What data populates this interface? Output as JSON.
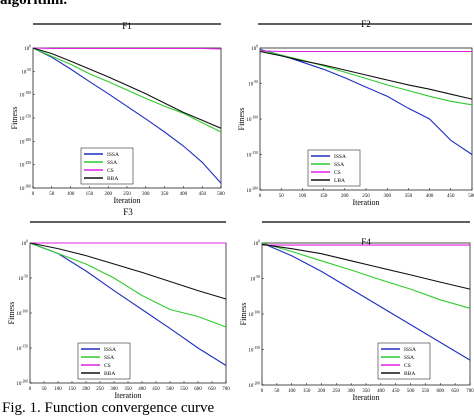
{
  "header_fragment": "algorithm.",
  "caption": "Fig. 1. Function convergence curve",
  "chart_data": [
    {
      "type": "line",
      "title": "F1",
      "xlabel": "Iteration",
      "ylabel": "Fitness",
      "xlim": [
        0,
        500
      ],
      "ylim_log10": [
        -300,
        0
      ],
      "x_ticks": [
        "0",
        "50",
        "100",
        "150",
        "200",
        "250",
        "300",
        "350",
        "400",
        "450",
        "500"
      ],
      "y_ticks": [
        "10^0",
        "10^-50",
        "10^-100",
        "10^-150",
        "10^-200",
        "10^-250",
        "10^-300"
      ],
      "scale": "log",
      "grid": false,
      "legend_position": "lower-left",
      "x": [
        0,
        50,
        100,
        150,
        200,
        250,
        300,
        350,
        400,
        450,
        500
      ],
      "series": [
        {
          "name": "ISSA",
          "color": "#1f2fbf",
          "log10_values": [
            0,
            -20,
            -45,
            -72,
            -98,
            -125,
            -152,
            -180,
            -210,
            -245,
            -290
          ]
        },
        {
          "name": "SSA",
          "color": "#2ecc2e",
          "log10_values": [
            0,
            -18,
            -35,
            -55,
            -72,
            -90,
            -108,
            -125,
            -140,
            -160,
            -180
          ]
        },
        {
          "name": "CS",
          "color": "#e020e0",
          "log10_values": [
            0,
            -1,
            -1,
            -1,
            -1,
            -1,
            -1,
            -1,
            -1,
            -1,
            -2
          ]
        },
        {
          "name": "BBA",
          "color": "#111111",
          "log10_values": [
            0,
            -12,
            -28,
            -45,
            -62,
            -80,
            -98,
            -118,
            -138,
            -155,
            -172
          ]
        }
      ]
    },
    {
      "type": "line",
      "title": "F2",
      "xlabel": "Iteration",
      "ylabel": "Fitness",
      "xlim": [
        0,
        500
      ],
      "ylim_log10": [
        -200,
        0
      ],
      "x_ticks": [
        "0",
        "50",
        "100",
        "150",
        "200",
        "250",
        "300",
        "350",
        "400",
        "450",
        "500"
      ],
      "y_ticks": [
        "10^0",
        "10^-50",
        "10^-100",
        "10^-150",
        "10^-200"
      ],
      "scale": "log",
      "grid": false,
      "legend_position": "lower-left",
      "x": [
        0,
        50,
        100,
        150,
        200,
        250,
        300,
        350,
        400,
        450,
        500
      ],
      "series": [
        {
          "name": "ISSA",
          "color": "#1f2fbf",
          "log10_values": [
            -2,
            -10,
            -20,
            -30,
            -42,
            -55,
            -68,
            -85,
            -100,
            -130,
            -150
          ]
        },
        {
          "name": "SSA",
          "color": "#2ecc2e",
          "log10_values": [
            -3,
            -10,
            -17,
            -25,
            -34,
            -43,
            -52,
            -60,
            -68,
            -75,
            -80
          ]
        },
        {
          "name": "CS",
          "color": "#e020e0",
          "log10_values": [
            -4,
            -5,
            -5,
            -5,
            -5,
            -5,
            -5,
            -5,
            -5,
            -5,
            -5
          ]
        },
        {
          "name": "LBA",
          "color": "#111111",
          "log10_values": [
            -5,
            -11,
            -18,
            -24,
            -31,
            -38,
            -45,
            -52,
            -58,
            -65,
            -72
          ]
        }
      ]
    },
    {
      "type": "line",
      "title": "F3",
      "xlabel": "Iteration",
      "ylabel": "Fitness",
      "xlim": [
        0,
        700
      ],
      "ylim_log10": [
        -200,
        0
      ],
      "x_ticks": [
        "0",
        "50",
        "100",
        "150",
        "200",
        "250",
        "300",
        "350",
        "400",
        "450",
        "500",
        "550",
        "600",
        "650",
        "700"
      ],
      "y_ticks": [
        "10^0",
        "10^-50",
        "10^-100",
        "10^-150",
        "10^-200"
      ],
      "scale": "log",
      "grid": false,
      "legend_position": "lower-left",
      "x": [
        0,
        100,
        200,
        300,
        400,
        500,
        600,
        700
      ],
      "series": [
        {
          "name": "ISSA",
          "color": "#1f2fbf",
          "log10_values": [
            0,
            -15,
            -40,
            -68,
            -95,
            -122,
            -150,
            -175
          ]
        },
        {
          "name": "SSA",
          "color": "#2ecc2e",
          "log10_values": [
            0,
            -15,
            -30,
            -50,
            -75,
            -95,
            -105,
            -120
          ]
        },
        {
          "name": "CS",
          "color": "#e020e0",
          "log10_values": [
            0,
            0,
            0,
            0,
            0,
            0,
            0,
            0
          ]
        },
        {
          "name": "BBA",
          "color": "#111111",
          "log10_values": [
            0,
            -8,
            -18,
            -30,
            -42,
            -55,
            -68,
            -80
          ]
        }
      ]
    },
    {
      "type": "line",
      "title": "F4",
      "xlabel": "Iteration",
      "ylabel": "Fitness",
      "xlim": [
        0,
        700
      ],
      "ylim_log10": [
        -200,
        0
      ],
      "x_ticks": [
        "0",
        "50",
        "100",
        "150",
        "200",
        "250",
        "300",
        "350",
        "400",
        "450",
        "500",
        "550",
        "600",
        "650",
        "700"
      ],
      "y_ticks": [
        "10^0",
        "10^-50",
        "10^-100",
        "10^-150",
        "10^-200"
      ],
      "scale": "log",
      "grid": false,
      "legend_position": "lower-right",
      "x": [
        0,
        100,
        200,
        300,
        400,
        500,
        600,
        700
      ],
      "series": [
        {
          "name": "ISSA",
          "color": "#1f2fbf",
          "log10_values": [
            0,
            -18,
            -40,
            -65,
            -90,
            -115,
            -140,
            -165
          ]
        },
        {
          "name": "SSA",
          "color": "#2ecc2e",
          "log10_values": [
            0,
            -12,
            -25,
            -38,
            -52,
            -65,
            -80,
            -92
          ]
        },
        {
          "name": "CS",
          "color": "#e020e0",
          "log10_values": [
            -3,
            -3,
            -3,
            -3,
            -3,
            -3,
            -3,
            -3
          ]
        },
        {
          "name": "BBA",
          "color": "#111111",
          "log10_values": [
            -2,
            -8,
            -15,
            -25,
            -35,
            -45,
            -55,
            -65
          ]
        }
      ]
    }
  ]
}
